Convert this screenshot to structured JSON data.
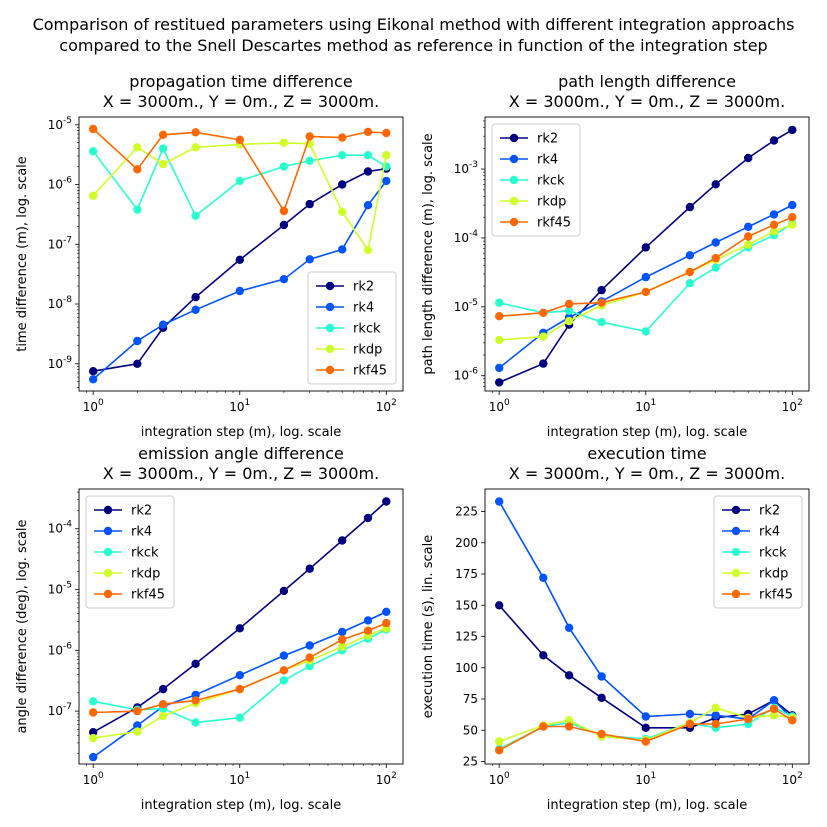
{
  "suptitle": [
    "Comparison of restitued parameters using Eikonal method with different integration approachs",
    "compared to the Snell Descartes method as reference in function of the integration step"
  ],
  "colors": {
    "rk2": "#00007f",
    "rk4": "#0053ff",
    "rkck": "#29ffce",
    "rkdp": "#ceff29",
    "rkf45": "#ff6800"
  },
  "chart_data": [
    {
      "type": "line",
      "title": [
        "propagation time difference",
        "X = 3000m., Y = 0m., Z = 3000m."
      ],
      "xlabel": "integration step (m), log. scale",
      "ylabel": "time difference (m), log. scale",
      "xscale": "log",
      "yscale": "log",
      "xlim": [
        0.8,
        130
      ],
      "ylim": [
        3.5e-10,
        1.35e-05
      ],
      "xticks": [
        1,
        10,
        100
      ],
      "xtick_labels": [
        "10^0",
        "10^1",
        "10^2"
      ],
      "yticks": [
        1e-09,
        1e-08,
        1e-07,
        1e-06,
        1e-05
      ],
      "ytick_labels": [
        "10^-9",
        "10^-8",
        "10^-7",
        "10^-6",
        "10^-5"
      ],
      "legend_position": "lower-right",
      "x": [
        1,
        2,
        3,
        5,
        10,
        20,
        30,
        50,
        75,
        100
      ],
      "series": [
        {
          "name": "rk2",
          "values": [
            7.5e-10,
            1e-09,
            4e-09,
            1.3e-08,
            5.5e-08,
            2.1e-07,
            4.7e-07,
            1e-06,
            1.65e-06,
            1.85e-06
          ]
        },
        {
          "name": "rk4",
          "values": [
            5.5e-10,
            2.4e-09,
            4.5e-09,
            8e-09,
            1.65e-08,
            2.6e-08,
            5.6e-08,
            8.2e-08,
            4.5e-07,
            1.15e-06
          ]
        },
        {
          "name": "rkck",
          "values": [
            3.6e-06,
            3.8e-07,
            4e-06,
            3e-07,
            1.15e-06,
            2e-06,
            2.5e-06,
            3.1e-06,
            3.1e-06,
            2e-06
          ]
        },
        {
          "name": "rkdp",
          "values": [
            6.5e-07,
            4.2e-06,
            2.2e-06,
            4.2e-06,
            4.7e-06,
            5e-06,
            4.8e-06,
            3.5e-07,
            8e-08,
            3.1e-06
          ]
        },
        {
          "name": "rkf45",
          "values": [
            8.5e-06,
            1.8e-06,
            6.8e-06,
            7.5e-06,
            5.6e-06,
            3.6e-07,
            6.4e-06,
            6.1e-06,
            7.6e-06,
            7.3e-06
          ]
        }
      ]
    },
    {
      "type": "line",
      "title": [
        "path length difference",
        "X = 3000m., Y = 0m., Z = 3000m."
      ],
      "xlabel": "integration step (m), log. scale",
      "ylabel": "path length difference (m), log. scale",
      "xscale": "log",
      "yscale": "log",
      "xlim": [
        0.8,
        130
      ],
      "ylim": [
        6e-07,
        0.0057
      ],
      "xticks": [
        1,
        10,
        100
      ],
      "xtick_labels": [
        "10^0",
        "10^1",
        "10^2"
      ],
      "yticks": [
        1e-06,
        1e-05,
        0.0001,
        0.001
      ],
      "ytick_labels": [
        "10^-6",
        "10^-5",
        "10^-4",
        "10^-3"
      ],
      "legend_position": "upper-left",
      "x": [
        1,
        2,
        3,
        5,
        10,
        20,
        30,
        50,
        75,
        100
      ],
      "series": [
        {
          "name": "rk2",
          "values": [
            8e-07,
            1.5e-06,
            5.5e-06,
            1.75e-05,
            7.3e-05,
            0.00028,
            0.0006,
            0.00145,
            0.0026,
            0.0037
          ]
        },
        {
          "name": "rk4",
          "values": [
            1.3e-06,
            4.2e-06,
            7e-06,
            1.2e-05,
            2.7e-05,
            5.6e-05,
            8.6e-05,
            0.000145,
            0.00022,
            0.0003
          ]
        },
        {
          "name": "rkck",
          "values": [
            1.15e-05,
            8.2e-06,
            8.8e-06,
            6e-06,
            4.4e-06,
            2.2e-05,
            3.7e-05,
            7.3e-05,
            0.00011,
            0.00016
          ]
        },
        {
          "name": "rkdp",
          "values": [
            3.3e-06,
            3.7e-06,
            6.2e-06,
            1.05e-05,
            1.65e-05,
            3.2e-05,
            4.8e-05,
            8e-05,
            0.000125,
            0.000155
          ]
        },
        {
          "name": "rkf45",
          "values": [
            7.3e-06,
            8.2e-06,
            1.1e-05,
            1.15e-05,
            1.65e-05,
            3.2e-05,
            5.1e-05,
            0.000105,
            0.000155,
            0.0002
          ]
        }
      ]
    },
    {
      "type": "line",
      "title": [
        "emission angle difference",
        "X = 3000m., Y = 0m., Z = 3000m."
      ],
      "xlabel": "integration step (m), log. scale",
      "ylabel": "angle difference (deg), log. scale",
      "xscale": "log",
      "yscale": "log",
      "xlim": [
        0.8,
        130
      ],
      "ylim": [
        1.35e-08,
        0.00045
      ],
      "xticks": [
        1,
        10,
        100
      ],
      "xtick_labels": [
        "10^0",
        "10^1",
        "10^2"
      ],
      "yticks": [
        1e-07,
        1e-06,
        1e-05,
        0.0001
      ],
      "ytick_labels": [
        "10^-7",
        "10^-6",
        "10^-5",
        "10^-4"
      ],
      "legend_position": "upper-left",
      "x": [
        1,
        2,
        3,
        5,
        10,
        20,
        30,
        50,
        75,
        100
      ],
      "series": [
        {
          "name": "rk2",
          "values": [
            4.5e-08,
            1.15e-07,
            2.3e-07,
            6e-07,
            2.3e-06,
            9.5e-06,
            2.2e-05,
            6.4e-05,
            0.00015,
            0.00028
          ]
        },
        {
          "name": "rk4",
          "values": [
            1.75e-08,
            5.8e-08,
            1.2e-07,
            1.85e-07,
            3.9e-07,
            8.2e-07,
            1.2e-06,
            2e-06,
            3.1e-06,
            4.3e-06
          ]
        },
        {
          "name": "rkck",
          "values": [
            1.45e-07,
            1.05e-07,
            1.1e-07,
            6.5e-08,
            7.8e-08,
            3.2e-07,
            5.5e-07,
            1e-06,
            1.55e-06,
            2.2e-06
          ]
        },
        {
          "name": "rkdp",
          "values": [
            3.6e-08,
            4.6e-08,
            8.3e-08,
            1.35e-07,
            2.3e-07,
            4.7e-07,
            6.8e-07,
            1.15e-06,
            1.75e-06,
            2.3e-06
          ]
        },
        {
          "name": "rkf45",
          "values": [
            9.5e-08,
            1e-07,
            1.3e-07,
            1.5e-07,
            2.3e-07,
            4.7e-07,
            7.6e-07,
            1.5e-06,
            2.1e-06,
            2.8e-06
          ]
        }
      ]
    },
    {
      "type": "line",
      "title": [
        "execution time",
        "X = 3000m., Y = 0m., Z = 3000m."
      ],
      "xlabel": "integration step (m), log. scale",
      "ylabel": "execution time (s), lin. scale",
      "xscale": "log",
      "yscale": "linear",
      "xlim": [
        0.8,
        130
      ],
      "ylim": [
        23,
        243
      ],
      "xticks": [
        1,
        10,
        100
      ],
      "xtick_labels": [
        "10^0",
        "10^1",
        "10^2"
      ],
      "yticks": [
        25,
        50,
        75,
        100,
        125,
        150,
        175,
        200,
        225
      ],
      "ytick_labels": [
        "25",
        "50",
        "75",
        "100",
        "125",
        "150",
        "175",
        "200",
        "225"
      ],
      "legend_position": "upper-right",
      "x": [
        1,
        2,
        3,
        5,
        10,
        20,
        30,
        50,
        75,
        100
      ],
      "series": [
        {
          "name": "rk2",
          "values": [
            150,
            110,
            94,
            76,
            52,
            52,
            60,
            63,
            74,
            62
          ]
        },
        {
          "name": "rk4",
          "values": [
            233,
            172,
            132,
            93,
            61,
            63,
            62,
            59,
            74,
            59
          ]
        },
        {
          "name": "rkck",
          "values": [
            35,
            53,
            56,
            46,
            43,
            56,
            52,
            55,
            68,
            61
          ]
        },
        {
          "name": "rkdp",
          "values": [
            41,
            54,
            58,
            45,
            42,
            56,
            68,
            60,
            62,
            60
          ]
        },
        {
          "name": "rkf45",
          "values": [
            34,
            53,
            53,
            47,
            41,
            55,
            55,
            59,
            67,
            58
          ]
        }
      ]
    }
  ]
}
